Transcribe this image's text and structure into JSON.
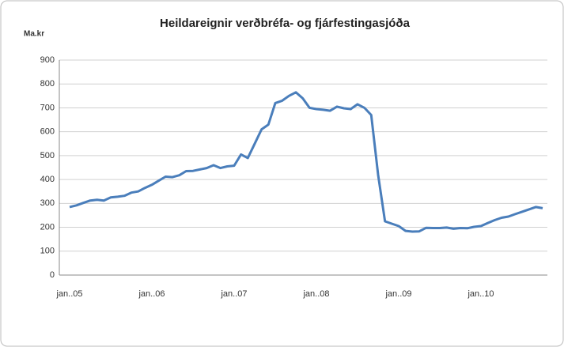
{
  "chart_data": {
    "type": "line",
    "title": "Heildareignir verðbréfa- og fjárfestingasjóða",
    "y_label": "Ma.kr",
    "categories": [
      "jan..05",
      null,
      null,
      null,
      null,
      null,
      null,
      null,
      null,
      null,
      null,
      null,
      "jan..06",
      null,
      null,
      null,
      null,
      null,
      null,
      null,
      null,
      null,
      null,
      null,
      "jan..07",
      null,
      null,
      null,
      null,
      null,
      null,
      null,
      null,
      null,
      null,
      null,
      "jan..08",
      null,
      null,
      null,
      null,
      null,
      null,
      null,
      null,
      null,
      null,
      null,
      "jan..09",
      null,
      null,
      null,
      null,
      null,
      null,
      null,
      null,
      null,
      null,
      null,
      "jan..10",
      null,
      null,
      null,
      null,
      null,
      null,
      null,
      null,
      null
    ],
    "values": [
      285,
      292,
      302,
      312,
      315,
      312,
      325,
      328,
      332,
      345,
      350,
      365,
      378,
      395,
      412,
      410,
      418,
      435,
      436,
      442,
      448,
      460,
      448,
      455,
      458,
      505,
      490,
      550,
      610,
      630,
      720,
      730,
      750,
      765,
      740,
      700,
      695,
      692,
      688,
      705,
      698,
      695,
      715,
      700,
      670,
      420,
      225,
      215,
      205,
      185,
      182,
      183,
      198,
      197,
      197,
      199,
      194,
      197,
      196,
      202,
      205,
      218,
      230,
      240,
      245,
      255,
      265,
      275,
      285,
      280
    ],
    "color": "#4a7ebb",
    "ylim": [
      0,
      900
    ],
    "yticks": [
      0,
      100,
      200,
      300,
      400,
      500,
      600,
      700,
      800,
      900
    ],
    "grid": true
  }
}
